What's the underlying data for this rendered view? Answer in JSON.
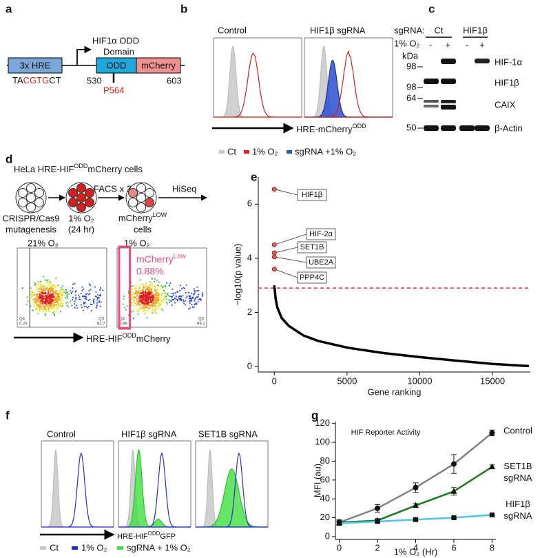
{
  "panel_labels": [
    "a",
    "b",
    "c",
    "d",
    "e",
    "f",
    "g"
  ],
  "a": {
    "hre": "3x HRE",
    "header_1": "HIF1α ODD",
    "header_2": "Domain",
    "odd": "ODD",
    "mcherry": "mCherry",
    "seq_prefix": "TA",
    "seq_core": "CGTG",
    "seq_suffix": "CT",
    "start": 530,
    "end": 603,
    "site": "P564"
  },
  "b": {
    "titles": [
      "Control",
      "HIF1β sgRNA"
    ],
    "axis_label": "HRE-mCherry",
    "axis_label_sup": "ODD",
    "legend": [
      "Ct",
      "1% O₂",
      "sgRNA +1% O₂"
    ]
  },
  "c": {
    "sgrna_label": "sgRNA:",
    "groups": [
      "Ct",
      "HIF1β"
    ],
    "o2_label": "1% O₂",
    "lanes": [
      "-",
      "+",
      "-",
      "+"
    ],
    "kda": "kDa",
    "markers": [
      98,
      98,
      64,
      50
    ],
    "proteins": [
      "HIF-1α",
      "HIF1β",
      "CAIX",
      "β-Actin"
    ]
  },
  "d": {
    "title_pre": "HeLa HRE-HIF",
    "title_sup": "ODD",
    "title_post": "mCherry cells",
    "step_1": [
      "CRISPR/Cas9",
      "mutagenesis"
    ],
    "step_2": [
      "1% O₂",
      "(24 hr)"
    ],
    "step_3_pre": "mCherry",
    "step_3_sup": "LOW",
    "step_3_post": "cells",
    "arrow_1": "FACS x 2",
    "arrow_2": "HiSeq",
    "plot_titles": [
      "21% O₂",
      "1% O₂"
    ],
    "gate_label_pre": "mCherry",
    "gate_label_sup": "Low",
    "gate_value": "0.88%",
    "quadrants": [
      [
        "Q4",
        "0.29",
        "Q3",
        "91.7"
      ],
      [
        "Q4",
        "0.88",
        "Q3",
        "99.1"
      ]
    ],
    "axis_pre": "HRE-HIF",
    "axis_sup": "ODD",
    "axis_post": "mCherry"
  },
  "f": {
    "titles": [
      "Control",
      "HIF1β sgRNA",
      "SET1B sgRNA"
    ],
    "axis_pre": "HRE-HIF",
    "axis_sup": "ODD",
    "axis_post": "GFP",
    "legend": [
      "Ct",
      "1% O₂",
      "sgRNA + 1% O₂"
    ]
  },
  "chart_data": [
    {
      "type": "line",
      "x_label": "Gene ranking",
      "y_label": "−log10(p value)",
      "color": "#000000",
      "x": [
        0,
        100,
        200,
        500,
        1000,
        2000,
        3000,
        5000,
        7500,
        10000,
        12500,
        15000,
        17500
      ],
      "values": [
        3.0,
        2.5,
        2.2,
        1.8,
        1.5,
        1.15,
        0.95,
        0.7,
        0.5,
        0.35,
        0.22,
        0.1,
        0.02
      ],
      "highlights": {
        "labels": [
          "HIF1β",
          "HIF-2α",
          "SET1B",
          "UBE2A",
          "PPP4C"
        ],
        "x": [
          1,
          2,
          3,
          4,
          5
        ],
        "values": [
          6.55,
          4.5,
          4.2,
          4.05,
          3.6
        ],
        "color": "#e06060"
      },
      "threshold": 2.9,
      "threshold_color": "#e03030",
      "xlim": [
        -1100,
        17600
      ],
      "ylim": [
        -0.2,
        7
      ],
      "xticks": [
        0,
        5000,
        10000,
        15000
      ],
      "yticks": [
        0,
        2,
        4,
        6
      ]
    },
    {
      "type": "line",
      "title": "HIF Reporter Activity",
      "x_label": "1% O₂ (Hr)",
      "y_label": "MFI (au)",
      "x": [
        0,
        2,
        4,
        6,
        8
      ],
      "series": [
        {
          "name": "Control",
          "color": "#808080",
          "marker": "circle",
          "values": [
            15,
            30,
            52,
            77,
            110
          ],
          "errors": [
            3,
            4,
            5,
            10,
            3
          ]
        },
        {
          "name": "SET1B sgRNA",
          "color": "#1a7a1a",
          "marker": "triangle",
          "values": [
            15,
            17,
            33,
            48,
            74
          ],
          "errors": [
            2,
            2,
            2,
            4,
            2
          ]
        },
        {
          "name": "HIF1β sgRNA",
          "color": "#4fc3e8",
          "marker": "square",
          "values": [
            14,
            16,
            18,
            20,
            23
          ],
          "errors": [
            2,
            2,
            1,
            1,
            1
          ]
        }
      ],
      "xlim": [
        -0.2,
        8.2
      ],
      "ylim": [
        -3,
        122
      ],
      "xticks": [
        0,
        2,
        4,
        6,
        8
      ],
      "yticks": [
        0,
        20,
        40,
        60,
        80,
        100,
        120
      ]
    }
  ]
}
